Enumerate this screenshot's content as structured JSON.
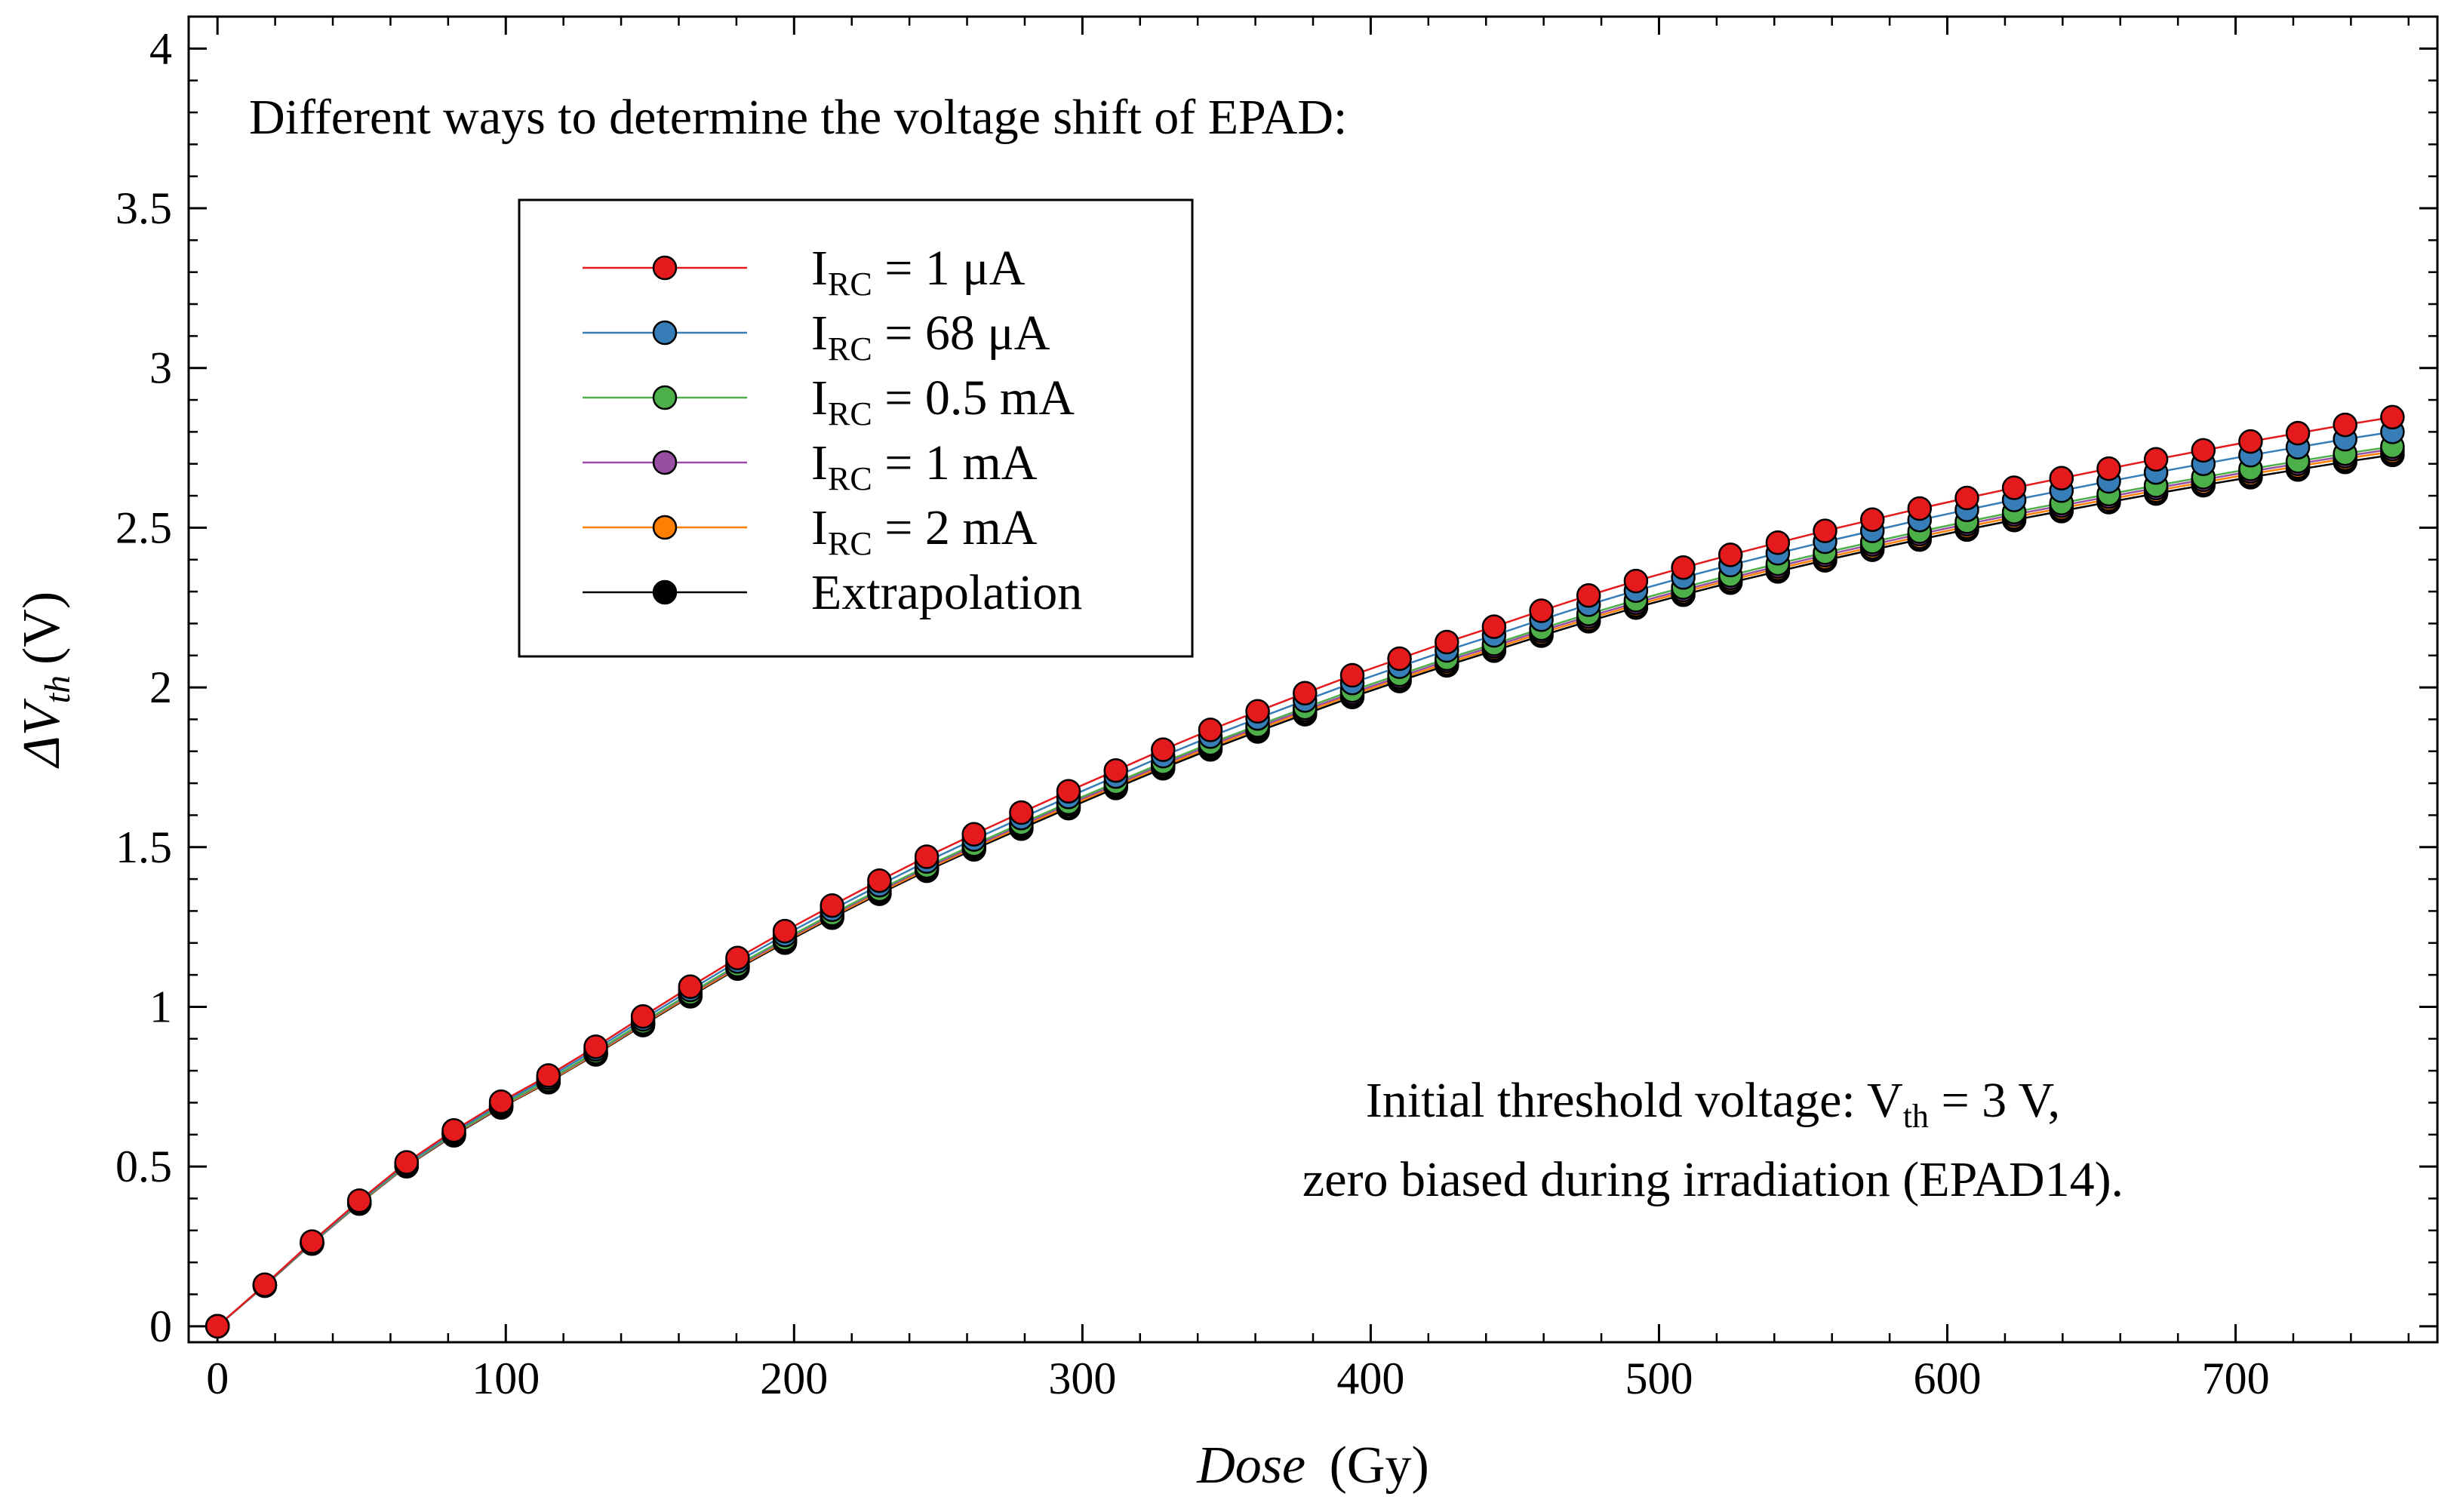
{
  "chart_data": {
    "type": "line",
    "title": "",
    "xlabel": "Dose",
    "xunit": "(Gy)",
    "ylabel_sym": "ΔV",
    "ylabel_sub": "th",
    "yunit": "(V)",
    "xlim": [
      -10,
      770
    ],
    "ylim": [
      -0.05,
      4.1
    ],
    "xticks": [
      0,
      100,
      200,
      300,
      400,
      500,
      600,
      700
    ],
    "xtick_labels": [
      "0",
      "100",
      "200",
      "300",
      "400",
      "500",
      "600",
      "700"
    ],
    "yticks": [
      0,
      0.5,
      1,
      1.5,
      2,
      2.5,
      3,
      3.5,
      4
    ],
    "ytick_labels": [
      "0",
      "0.5",
      "1",
      "1.5",
      "2",
      "2.5",
      "3",
      "3.5",
      "4"
    ],
    "legend_position": "upper-left",
    "x": [
      0,
      16.4,
      32.8,
      49.2,
      65.6,
      82,
      98.4,
      114.8,
      131.2,
      147.6,
      164,
      180.4,
      196.8,
      213.2,
      229.6,
      246,
      262.4,
      278.8,
      295.2,
      311.6,
      328,
      344.4,
      360.8,
      377.2,
      393.6,
      410,
      426.4,
      442.8,
      459.2,
      475.6,
      492,
      508.4,
      524.8,
      541.2,
      557.6,
      574,
      590.4,
      606.8,
      623.2,
      639.6,
      656,
      672.4,
      688.8,
      705.2,
      721.6,
      738,
      754.4
    ],
    "series": [
      {
        "name": "= 1 μA",
        "label_main": "I",
        "label_sub": "RC",
        "label_rest": " = 1 μA",
        "color": "#e41a1c",
        "values": [
          0,
          0.13,
          0.265,
          0.393,
          0.513,
          0.613,
          0.703,
          0.785,
          0.875,
          0.97,
          1.063,
          1.153,
          1.237,
          1.317,
          1.395,
          1.47,
          1.54,
          1.608,
          1.675,
          1.74,
          1.805,
          1.867,
          1.925,
          1.982,
          2.038,
          2.09,
          2.142,
          2.19,
          2.24,
          2.288,
          2.333,
          2.375,
          2.415,
          2.453,
          2.49,
          2.525,
          2.56,
          2.593,
          2.625,
          2.655,
          2.685,
          2.714,
          2.742,
          2.77,
          2.796,
          2.822,
          2.846
        ]
      },
      {
        "name": "= 68 μA",
        "label_main": "I",
        "label_sub": "RC",
        "label_rest": " = 68 μA",
        "color": "#377eb8",
        "values": [
          0,
          0.129,
          0.263,
          0.39,
          0.509,
          0.608,
          0.697,
          0.778,
          0.867,
          0.961,
          1.053,
          1.142,
          1.225,
          1.304,
          1.381,
          1.455,
          1.524,
          1.591,
          1.657,
          1.721,
          1.785,
          1.846,
          1.903,
          1.959,
          2.014,
          2.065,
          2.116,
          2.163,
          2.212,
          2.259,
          2.303,
          2.344,
          2.383,
          2.42,
          2.456,
          2.49,
          2.524,
          2.556,
          2.587,
          2.616,
          2.645,
          2.673,
          2.7,
          2.727,
          2.752,
          2.777,
          2.8
        ]
      },
      {
        "name": "= 0.5 mA",
        "label_main": "I",
        "label_sub": "RC",
        "label_rest": " = 0.5 mA",
        "color": "#4daf4a",
        "values": [
          0,
          0.128,
          0.261,
          0.387,
          0.505,
          0.603,
          0.691,
          0.771,
          0.859,
          0.952,
          1.043,
          1.131,
          1.213,
          1.291,
          1.367,
          1.44,
          1.508,
          1.574,
          1.639,
          1.702,
          1.765,
          1.825,
          1.881,
          1.936,
          1.99,
          2.04,
          2.09,
          2.136,
          2.184,
          2.23,
          2.273,
          2.313,
          2.351,
          2.387,
          2.422,
          2.455,
          2.488,
          2.519,
          2.549,
          2.577,
          2.605,
          2.632,
          2.658,
          2.684,
          2.708,
          2.732,
          2.754
        ]
      },
      {
        "name": "= 1 mA",
        "label_main": "I",
        "label_sub": "RC",
        "label_rest": " = 1 mA",
        "color": "#984ea3",
        "values": [
          0,
          0.128,
          0.26,
          0.386,
          0.503,
          0.601,
          0.689,
          0.769,
          0.856,
          0.949,
          1.04,
          1.127,
          1.209,
          1.287,
          1.363,
          1.435,
          1.503,
          1.569,
          1.634,
          1.696,
          1.759,
          1.819,
          1.875,
          1.929,
          1.983,
          2.033,
          2.083,
          2.129,
          2.177,
          2.222,
          2.265,
          2.305,
          2.343,
          2.379,
          2.414,
          2.447,
          2.48,
          2.511,
          2.541,
          2.569,
          2.597,
          2.624,
          2.65,
          2.676,
          2.7,
          2.724,
          2.746
        ]
      },
      {
        "name": "= 2 mA",
        "label_main": "I",
        "label_sub": "RC",
        "label_rest": " = 2 mA",
        "color": "#ff7f00",
        "values": [
          0,
          0.128,
          0.26,
          0.385,
          0.502,
          0.6,
          0.687,
          0.766,
          0.853,
          0.946,
          1.036,
          1.123,
          1.205,
          1.283,
          1.358,
          1.43,
          1.498,
          1.564,
          1.628,
          1.691,
          1.753,
          1.813,
          1.869,
          1.923,
          1.977,
          2.027,
          2.076,
          2.122,
          2.17,
          2.215,
          2.258,
          2.298,
          2.336,
          2.372,
          2.406,
          2.439,
          2.472,
          2.503,
          2.533,
          2.561,
          2.589,
          2.616,
          2.642,
          2.668,
          2.692,
          2.716,
          2.738
        ]
      },
      {
        "name": "Extrapolation",
        "label_main": "Extrapolation",
        "label_sub": "",
        "label_rest": "",
        "color": "#000000",
        "values": [
          0,
          0.127,
          0.259,
          0.384,
          0.501,
          0.598,
          0.685,
          0.764,
          0.851,
          0.943,
          1.033,
          1.12,
          1.201,
          1.279,
          1.354,
          1.426,
          1.493,
          1.558,
          1.622,
          1.685,
          1.747,
          1.806,
          1.862,
          1.916,
          1.97,
          2.02,
          2.069,
          2.115,
          2.162,
          2.207,
          2.25,
          2.29,
          2.328,
          2.363,
          2.398,
          2.431,
          2.463,
          2.494,
          2.524,
          2.552,
          2.58,
          2.607,
          2.633,
          2.658,
          2.682,
          2.706,
          2.728
        ]
      }
    ],
    "annotations": {
      "top": "Different ways to determine the voltage shift of EPAD:",
      "bottom_line1_main": "Initial threshold voltage: V",
      "bottom_line1_sub": "th",
      "bottom_line1_rest": " = 3 V,",
      "bottom_line2": "zero biased during irradiation (EPAD14)."
    }
  }
}
